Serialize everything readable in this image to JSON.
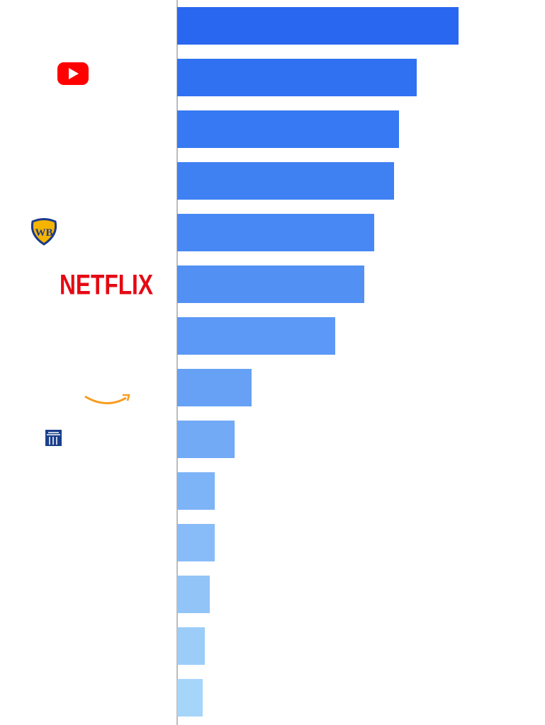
{
  "chart_data": {
    "type": "bar",
    "orientation": "horizontal",
    "categories": [
      null,
      null,
      null,
      null,
      null,
      "NETFLIX",
      null,
      null,
      null,
      null,
      null,
      null,
      null,
      null
    ],
    "values": [
      397,
      338,
      313,
      306,
      278,
      264,
      223,
      105,
      81,
      53,
      53,
      46,
      39,
      36
    ],
    "colors": [
      "#2a67f0",
      "#3071f2",
      "#3779f3",
      "#3f80f3",
      "#4888f4",
      "#5290f4",
      "#5c98f5",
      "#67a1f6",
      "#72aaf6",
      "#7db3f7",
      "#88bcf8",
      "#92c4f8",
      "#9ccdf9",
      "#a6d5fa"
    ],
    "xlim": [
      0,
      519
    ]
  }
}
